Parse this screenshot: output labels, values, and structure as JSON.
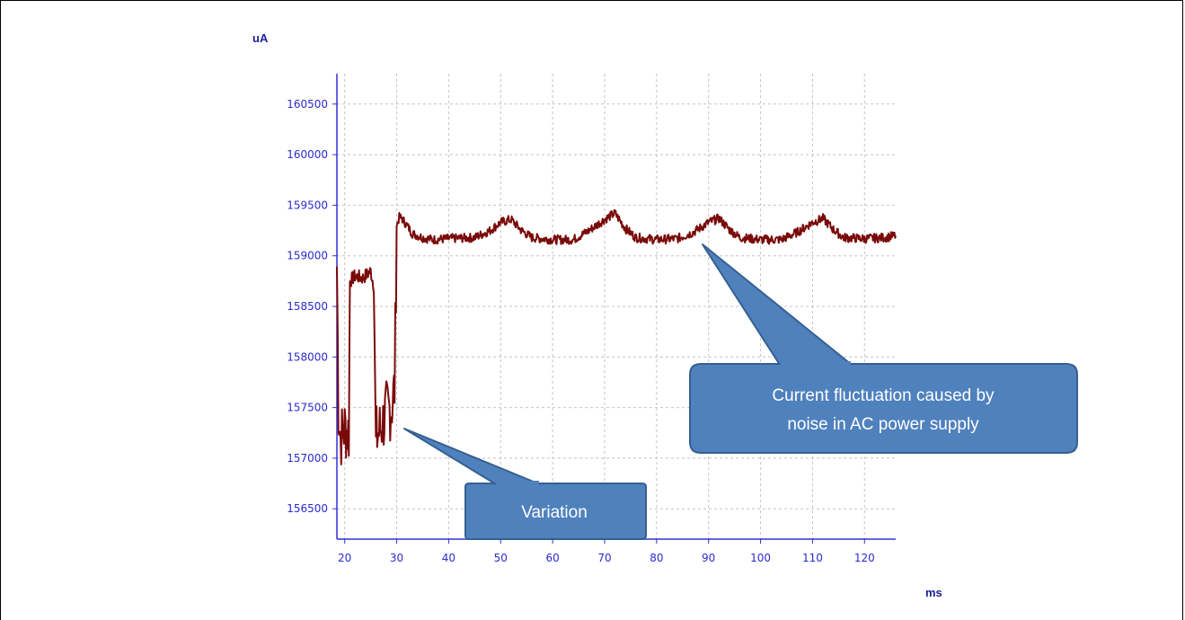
{
  "chart_data": {
    "type": "line",
    "xlabel": "ms",
    "ylabel": "uA",
    "xlim": [
      18.5,
      126
    ],
    "ylim": [
      156200,
      160800
    ],
    "x_ticks": [
      20,
      30,
      40,
      50,
      60,
      70,
      80,
      90,
      100,
      110,
      120
    ],
    "y_ticks": [
      156500,
      157000,
      157500,
      158000,
      158500,
      159000,
      159500,
      160000,
      160500
    ],
    "grid": true,
    "line_color": "#7a0a0a",
    "series": [
      {
        "x": [
          18.5,
          18.8,
          19.2,
          20.0,
          20.8,
          21.0,
          22.0,
          23.5,
          25.0,
          25.6,
          26.0,
          27.0,
          28.0,
          29.0,
          29.6,
          30.0,
          30.5,
          31.0,
          32.0,
          33.0,
          35.0,
          37.0,
          40.0,
          45.0,
          48.0,
          50.0,
          52.0,
          54.0,
          56.0,
          60.0,
          64.0,
          67.0,
          70.0,
          72.0,
          74.0,
          76.0,
          80.0,
          84.0,
          87.0,
          90.0,
          92.0,
          94.0,
          96.0,
          100.0,
          104.0,
          107.0,
          110.0,
          112.0,
          114.0,
          116.0,
          120.0,
          124.0,
          126.0
        ],
        "y": [
          158900,
          157500,
          157200,
          157300,
          157250,
          158750,
          158800,
          158780,
          158850,
          158700,
          157200,
          157300,
          157450,
          157500,
          157700,
          159300,
          159380,
          159370,
          159300,
          159220,
          159180,
          159160,
          159170,
          159180,
          159250,
          159330,
          159360,
          159250,
          159180,
          159160,
          159160,
          159250,
          159360,
          159420,
          159270,
          159180,
          159160,
          159170,
          159230,
          159330,
          159370,
          159260,
          159180,
          159160,
          159160,
          159230,
          159330,
          159370,
          159260,
          159180,
          159170,
          159180,
          159200
        ]
      }
    ],
    "annotations": [
      {
        "text": "Variation",
        "x": 29.5,
        "y": 157250
      },
      {
        "text": "Current fluctuation caused by noise in AC power supply",
        "x": 87,
        "y": 159150
      }
    ]
  },
  "callouts": {
    "variation": "Variation",
    "fluctuation_line1": "Current fluctuation caused by",
    "fluctuation_line2": "noise in AC power supply"
  },
  "colors": {
    "axis": "#3030d8",
    "grid": "#c4c4c4",
    "callout_fill": "#4f81bd",
    "callout_stroke": "#365f91"
  }
}
